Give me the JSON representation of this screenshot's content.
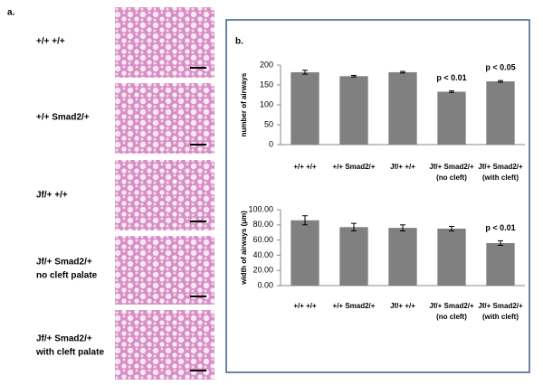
{
  "panel_a": {
    "label": "a.",
    "rows": [
      [
        "+/+ +/+"
      ],
      [
        "+/+ Smad2/+"
      ],
      [
        "Jf/+ +/+"
      ],
      [
        "Jf/+ Smad2/+",
        "no cleft palate"
      ],
      [
        "Jf/+ Smad2/+",
        "with cleft palate"
      ]
    ]
  },
  "panel_b": {
    "label": "b."
  },
  "chart_data": [
    {
      "type": "bar",
      "y_label": "number of airways",
      "categories": [
        [
          "+/+ +/+"
        ],
        [
          "+/+ Smad2/+"
        ],
        [
          "Jf/+ +/+"
        ],
        [
          "Jf/+ Smad2/+",
          "(no cleft)"
        ],
        [
          "Jf/+ Smad2/+",
          "(with cleft)"
        ]
      ],
      "values": [
        182,
        172,
        182,
        133,
        159
      ],
      "errors": [
        5,
        2,
        2,
        2,
        2
      ],
      "annotations": [
        null,
        null,
        null,
        "p < 0.01",
        "p < 0.05"
      ],
      "color": "#808080",
      "ylim": [
        0,
        200
      ],
      "yticks": [
        0,
        50,
        100,
        150,
        200
      ]
    },
    {
      "type": "bar",
      "y_label": "width of airways (μm)",
      "categories": [
        [
          "+/+ +/+"
        ],
        [
          "+/+ Smad2/+"
        ],
        [
          "Jf/+ +/+"
        ],
        [
          "Jf/+ Smad2/+",
          "(no cleft)"
        ],
        [
          "Jf/+ Smad2/+",
          "(with cleft)"
        ]
      ],
      "values": [
        86,
        77,
        76,
        75,
        56
      ],
      "errors": [
        6,
        5,
        4,
        3,
        3
      ],
      "annotations": [
        null,
        null,
        null,
        null,
        "p < 0.01"
      ],
      "color": "#808080",
      "ylim": [
        0,
        100
      ],
      "yticks": [
        {
          "value": 0,
          "label": "0.00"
        },
        {
          "value": 20,
          "label": "20.00"
        },
        {
          "value": 40,
          "label": "40.00"
        },
        {
          "value": 60,
          "label": "60.00"
        },
        {
          "value": 80,
          "label": "80.00"
        },
        {
          "value": 100,
          "label": "100.00"
        }
      ]
    }
  ]
}
